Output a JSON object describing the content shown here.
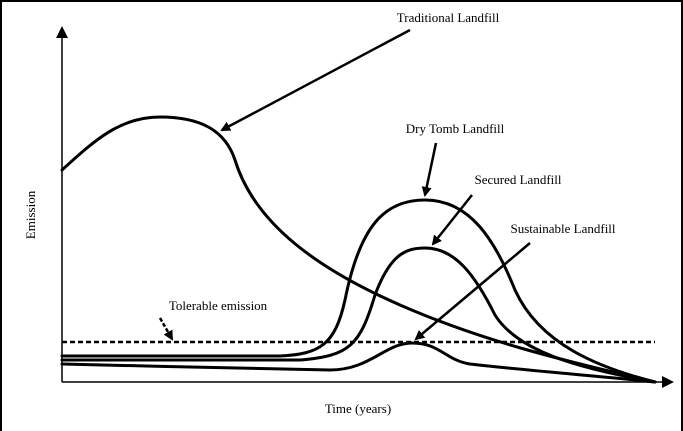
{
  "diagram": {
    "y_axis_label": "Emission",
    "x_axis_label": "Time (years)",
    "curves": [
      {
        "label": "Traditional Landfill"
      },
      {
        "label": "Dry Tomb Landfill"
      },
      {
        "label": "Secured Landfill"
      },
      {
        "label": "Sustainable Landfill"
      }
    ],
    "threshold_label": "Tolerable emission"
  }
}
